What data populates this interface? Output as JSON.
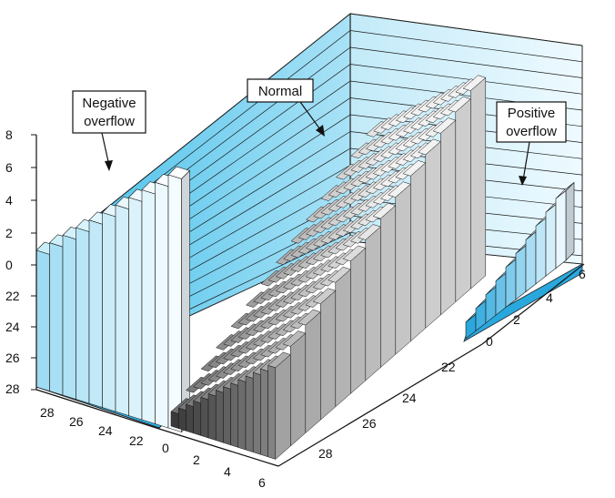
{
  "callouts": {
    "negative": {
      "line1": "Negative",
      "line2": "overflow"
    },
    "normal": {
      "line1": "Normal"
    },
    "positive": {
      "line1": "Positive",
      "line2": "overflow"
    }
  },
  "axes": {
    "left_vertical": [
      "8",
      "6",
      "4",
      "2",
      "0",
      "22",
      "24",
      "26",
      "28"
    ],
    "bottom_left": [
      "28",
      "26",
      "24",
      "22"
    ],
    "bottom_front": [
      "0",
      "2",
      "4",
      "6"
    ],
    "right_depth": [
      "22",
      "24",
      "26",
      "28"
    ],
    "right_far": [
      "0",
      "2",
      "4",
      "6"
    ]
  },
  "colors": {
    "wall_left": "#4fc3ee",
    "wall_right": "#d6f1fb",
    "normal_light": "#e0e0e0",
    "normal_dark": "#3a3a3a"
  }
}
